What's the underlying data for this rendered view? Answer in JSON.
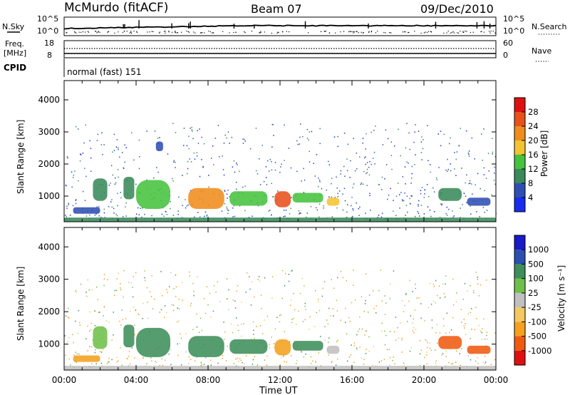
{
  "header": {
    "station": "McMurdo (fitACF)",
    "beam": "Beam 07",
    "date": "09/Dec/2010"
  },
  "top_panels": {
    "nsky_label": "N.Sky",
    "nsky_ticks": [
      "10^5",
      "10^0"
    ],
    "nsearch_label": "N.Search",
    "nsearch_ticks": [
      "10^5",
      "10^0"
    ],
    "freq_label_1": "Freq.",
    "freq_label_2": "[MHz]",
    "freq_ticks": [
      "18",
      "8"
    ],
    "nave_label": "Nave",
    "nave_ticks": [
      "60",
      "0"
    ],
    "cpid_label": "CPID",
    "cpid_value": "normal (fast) 151"
  },
  "colors": {
    "power": [
      "#1a2cf0",
      "#2f4fb4",
      "#3a8a5a",
      "#45c33c",
      "#f4c430",
      "#f08c1c",
      "#e8501c",
      "#e01010"
    ],
    "velocity": [
      "#e01010",
      "#f05a10",
      "#f5a020",
      "#f5c860",
      "#c0c0c0",
      "#6fc04a",
      "#3e8e5a",
      "#2a4fb0",
      "#1a1ac8"
    ]
  },
  "chart_data": [
    {
      "type": "heatmap",
      "name": "power",
      "ylabel": "Slant Range [km]",
      "yticks": [
        "1000",
        "2000",
        "3000",
        "4000"
      ],
      "ylim": [
        200,
        4600
      ],
      "xlim": [
        "00:00",
        "24:00"
      ],
      "colorbar_label": "Power [dB]",
      "colorbar_ticks": [
        "4",
        "8",
        "12",
        "16",
        "20",
        "24",
        "28"
      ],
      "colorbar_range": [
        0,
        30
      ],
      "echo_regions": [
        {
          "t0": 1.6,
          "t1": 2.4,
          "r0": 850,
          "r1": 1550,
          "value": 10
        },
        {
          "t0": 3.3,
          "t1": 3.9,
          "r0": 900,
          "r1": 1600,
          "value": 9
        },
        {
          "t0": 4.0,
          "t1": 5.9,
          "r0": 600,
          "r1": 1500,
          "value": 12
        },
        {
          "t0": 6.9,
          "t1": 8.9,
          "r0": 600,
          "r1": 1250,
          "value": 22
        },
        {
          "t0": 9.2,
          "t1": 11.3,
          "r0": 700,
          "r1": 1150,
          "value": 12
        },
        {
          "t0": 11.7,
          "t1": 12.6,
          "r0": 650,
          "r1": 1150,
          "value": 24
        },
        {
          "t0": 12.7,
          "t1": 14.4,
          "r0": 800,
          "r1": 1100,
          "value": 13
        },
        {
          "t0": 14.6,
          "t1": 15.3,
          "r0": 700,
          "r1": 950,
          "value": 16
        },
        {
          "t0": 20.8,
          "t1": 22.1,
          "r0": 850,
          "r1": 1250,
          "value": 8
        },
        {
          "t0": 22.4,
          "t1": 23.7,
          "r0": 700,
          "r1": 950,
          "value": 6
        },
        {
          "t0": 5.1,
          "t1": 5.5,
          "r0": 2400,
          "r1": 2700,
          "value": 6
        },
        {
          "t0": 0.5,
          "t1": 2.0,
          "r0": 450,
          "r1": 650,
          "value": 7
        },
        {
          "t0": 0.0,
          "t1": 24.0,
          "r0": 200,
          "r1": 330,
          "value": 8
        }
      ]
    },
    {
      "type": "heatmap",
      "name": "velocity",
      "ylabel": "Slant Range [km]",
      "yticks": [
        "1000",
        "2000",
        "3000",
        "4000"
      ],
      "ylim": [
        200,
        4600
      ],
      "xlim": [
        "00:00",
        "24:00"
      ],
      "xticks": [
        "00:00",
        "04:00",
        "08:00",
        "12:00",
        "16:00",
        "20:00",
        "00:00"
      ],
      "xlabel": "Time UT",
      "colorbar_label": "Velocity [m s⁻¹]",
      "colorbar_ticks": [
        "-1000",
        "-500",
        "-100",
        "-25",
        "25",
        "100",
        "500",
        "1000"
      ],
      "echo_regions": [
        {
          "t0": 1.6,
          "t1": 2.4,
          "r0": 850,
          "r1": 1550,
          "value": 90
        },
        {
          "t0": 3.3,
          "t1": 3.9,
          "r0": 900,
          "r1": 1600,
          "value": 120
        },
        {
          "t0": 4.0,
          "t1": 5.9,
          "r0": 600,
          "r1": 1500,
          "value": 150
        },
        {
          "t0": 6.9,
          "t1": 8.9,
          "r0": 600,
          "r1": 1250,
          "value": 140
        },
        {
          "t0": 9.2,
          "t1": 11.3,
          "r0": 700,
          "r1": 1150,
          "value": 130
        },
        {
          "t0": 11.7,
          "t1": 12.6,
          "r0": 650,
          "r1": 1150,
          "value": -150
        },
        {
          "t0": 12.7,
          "t1": 14.4,
          "r0": 800,
          "r1": 1100,
          "value": 120
        },
        {
          "t0": 14.6,
          "t1": 15.3,
          "r0": 700,
          "r1": 950,
          "value": 0
        },
        {
          "t0": 20.8,
          "t1": 22.1,
          "r0": 850,
          "r1": 1250,
          "value": -600
        },
        {
          "t0": 22.4,
          "t1": 23.7,
          "r0": 700,
          "r1": 950,
          "value": -900
        },
        {
          "t0": 0.5,
          "t1": 2.0,
          "r0": 450,
          "r1": 650,
          "value": -150
        },
        {
          "t0": 0.0,
          "t1": 24.0,
          "r0": 200,
          "r1": 330,
          "value": 0
        }
      ]
    }
  ]
}
